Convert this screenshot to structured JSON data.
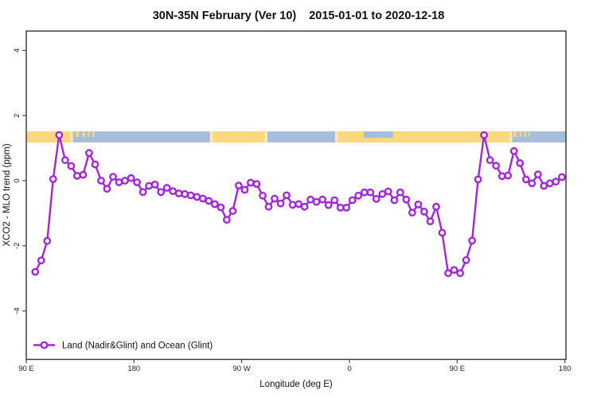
{
  "title": {
    "part1": "30N-35N February (Ver 10)",
    "part2": "2015-01-01 to 2020-12-18"
  },
  "axes": {
    "xlabel": "Longitude (deg E)",
    "ylabel": "XCO2 - MLO trend (ppm)",
    "x_ticks": [
      {
        "pos": 90,
        "label": "90 E"
      },
      {
        "pos": 180,
        "label": "180"
      },
      {
        "pos": 270,
        "label": "90 W"
      },
      {
        "pos": 360,
        "label": "0"
      },
      {
        "pos": 450,
        "label": "90 E"
      },
      {
        "pos": 540,
        "label": "180"
      }
    ],
    "y_ticks": [
      {
        "pos": 4,
        "label": "4"
      },
      {
        "pos": 2,
        "label": "2"
      },
      {
        "pos": 0,
        "label": "0"
      },
      {
        "pos": -2,
        "label": "-2"
      },
      {
        "pos": -4,
        "label": "-4"
      }
    ]
  },
  "legend": {
    "label": "Land (Nadir&Glint) and Ocean (Glint)"
  },
  "colors": {
    "series": "#A226DA",
    "marker_fill": "#FFFFFF",
    "land": "#FBD77E",
    "ocean": "#A7BDDC",
    "coast": "#FBE9B4",
    "box": "#333333",
    "tick": "#444444"
  },
  "map_strip": {
    "band_value_range": [
      1.17,
      1.52
    ],
    "land_segments": [
      [
        90,
        126.5
      ],
      [
        246,
        289
      ],
      [
        350.5,
        493.5
      ]
    ],
    "island_segments": [
      [
        131.5,
        134
      ],
      [
        137,
        139
      ],
      [
        141.5,
        143
      ],
      [
        145.5,
        147
      ],
      [
        497,
        499.5
      ],
      [
        502,
        503.5
      ],
      [
        506,
        507.5
      ],
      [
        509.5,
        510.5
      ]
    ],
    "coast_segments": [
      [
        126.5,
        129
      ],
      [
        243.5,
        246
      ],
      [
        289,
        291.5
      ],
      [
        348,
        350.5
      ],
      [
        493.5,
        496
      ]
    ],
    "ocean_notches": [
      [
        372,
        396.5
      ]
    ]
  },
  "chart_data": {
    "type": "line",
    "title": "30N-35N February (Ver 10)  2015-01-01 to 2020-12-18",
    "xlabel": "Longitude (deg E)",
    "ylabel": "XCO2 - MLO trend (ppm)",
    "xlim": [
      90,
      541.5
    ],
    "ylim": [
      -5.5,
      4.6
    ],
    "grid": false,
    "legend_position": "bottom-left",
    "series_name": "Land (Nadir&Glint) and Ocean (Glint)",
    "x": [
      97.5,
      102.5,
      107.5,
      112.5,
      117.5,
      122.5,
      127.5,
      132.5,
      137.5,
      142.5,
      147.5,
      152.5,
      157.5,
      162.5,
      167.5,
      172.5,
      177.5,
      182.5,
      187.5,
      192.5,
      197.5,
      202.5,
      207.5,
      212.5,
      217.5,
      222.5,
      227.5,
      232.5,
      237.5,
      242.5,
      247.5,
      252.5,
      257.5,
      262.5,
      267.5,
      272.5,
      277.5,
      282.5,
      287.5,
      292.5,
      297.5,
      302.5,
      307.5,
      312.5,
      317.5,
      322.5,
      327.5,
      332.5,
      337.5,
      342.5,
      347.5,
      352.5,
      357.5,
      362.5,
      367.5,
      372.5,
      377.5,
      382.5,
      387.5,
      392.5,
      397.5,
      402.5,
      407.5,
      412.5,
      417.5,
      422.5,
      427.5,
      432.5,
      437.5,
      442.5,
      447.5,
      452.5,
      457.5,
      462.5,
      467.5,
      472.5,
      477.5,
      482.5,
      487.5,
      492.5,
      497.5,
      502.5,
      507.5,
      512.5,
      517.5,
      522.5,
      527.5,
      532.5,
      537.5
    ],
    "values": [
      -2.8,
      -2.45,
      -1.85,
      0.05,
      1.4,
      0.63,
      0.45,
      0.15,
      0.18,
      0.85,
      0.5,
      0.0,
      -0.25,
      0.12,
      -0.05,
      0.0,
      0.08,
      -0.05,
      -0.35,
      -0.16,
      -0.12,
      -0.35,
      -0.22,
      -0.32,
      -0.39,
      -0.41,
      -0.45,
      -0.5,
      -0.55,
      -0.62,
      -0.72,
      -0.82,
      -1.2,
      -0.93,
      -0.15,
      -0.28,
      -0.06,
      -0.1,
      -0.46,
      -0.8,
      -0.55,
      -0.7,
      -0.45,
      -0.74,
      -0.72,
      -0.8,
      -0.58,
      -0.65,
      -0.58,
      -0.75,
      -0.6,
      -0.83,
      -0.83,
      -0.6,
      -0.46,
      -0.36,
      -0.36,
      -0.56,
      -0.41,
      -0.33,
      -0.6,
      -0.36,
      -0.58,
      -0.98,
      -0.73,
      -0.95,
      -1.25,
      -0.8,
      -1.6,
      -2.84,
      -2.74,
      -2.84,
      -2.44,
      -1.84,
      0.04,
      1.4,
      0.63,
      0.46,
      0.14,
      0.16,
      0.91,
      0.54,
      0.04,
      -0.08,
      0.19,
      -0.16,
      -0.08,
      -0.03,
      0.11
    ]
  }
}
